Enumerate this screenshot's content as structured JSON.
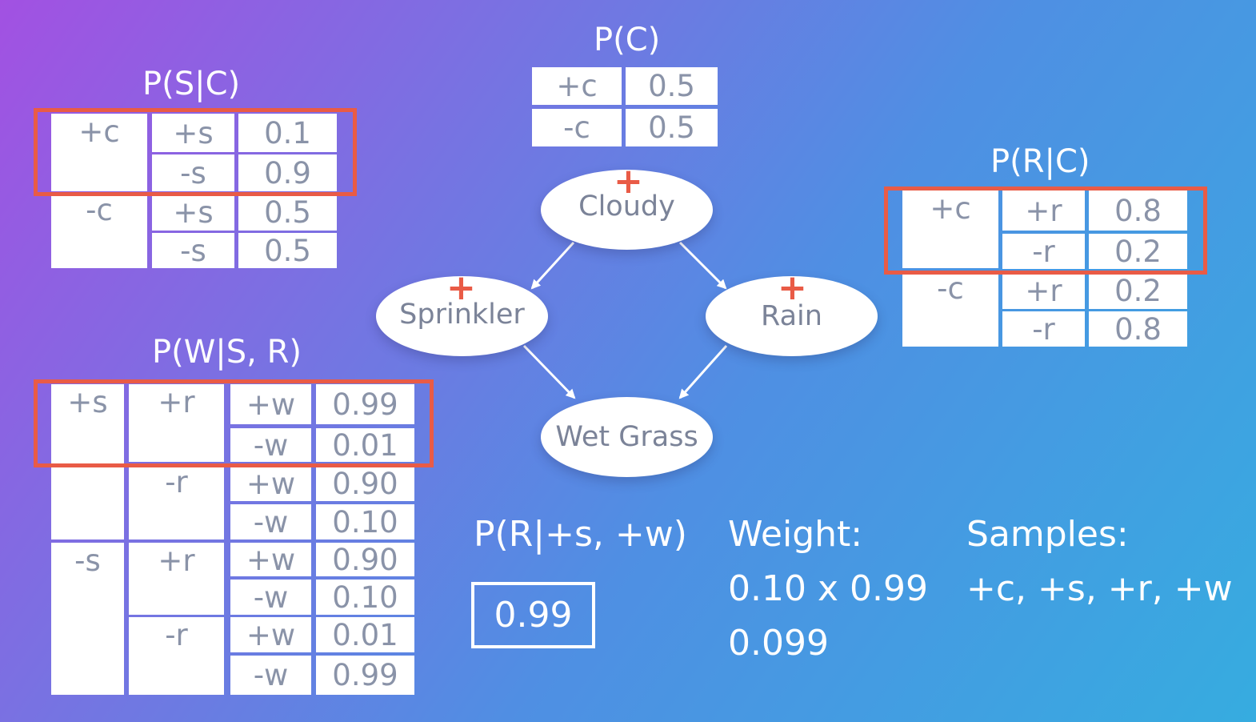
{
  "tables": {
    "pc": {
      "title": "P(C)",
      "rows": [
        [
          "+c",
          "0.5"
        ],
        [
          "-c",
          "0.5"
        ]
      ]
    },
    "psc": {
      "title": "P(S|C)",
      "c": [
        "+c",
        "-c"
      ],
      "rows": [
        [
          "+s",
          "0.1"
        ],
        [
          "-s",
          "0.9"
        ],
        [
          "+s",
          "0.5"
        ],
        [
          "-s",
          "0.5"
        ]
      ]
    },
    "prc": {
      "title": "P(R|C)",
      "c": [
        "+c",
        "-c"
      ],
      "rows": [
        [
          "+r",
          "0.8"
        ],
        [
          "-r",
          "0.2"
        ],
        [
          "+r",
          "0.2"
        ],
        [
          "-r",
          "0.8"
        ]
      ]
    },
    "pwsr": {
      "title": "P(W|S, R)",
      "s": [
        "+s",
        "-s"
      ],
      "r": [
        "+r",
        "-r",
        "+r",
        "-r"
      ],
      "rows": [
        [
          "+w",
          "0.99"
        ],
        [
          "-w",
          "0.01"
        ],
        [
          "+w",
          "0.90"
        ],
        [
          "-w",
          "0.10"
        ],
        [
          "+w",
          "0.90"
        ],
        [
          "-w",
          "0.10"
        ],
        [
          "+w",
          "0.01"
        ],
        [
          "-w",
          "0.99"
        ]
      ]
    }
  },
  "network": {
    "nodes": {
      "cloudy": "Cloudy",
      "sprinkler": "Sprinkler",
      "rain": "Rain",
      "wet_grass": "Wet Grass"
    },
    "plus_mark": "+"
  },
  "query": {
    "label": "P(R|+s, +w)",
    "answer": "0.99"
  },
  "weight": {
    "label": "Weight:",
    "expression": "0.10 x 0.99",
    "value": "0.099"
  },
  "samples": {
    "label": "Samples:",
    "value": "+c, +s, +r, +w"
  },
  "colors": {
    "highlight": "#e95b46",
    "table_separator_top": "#8a55d8",
    "table_separator_bottom": "#4a7fd8"
  }
}
